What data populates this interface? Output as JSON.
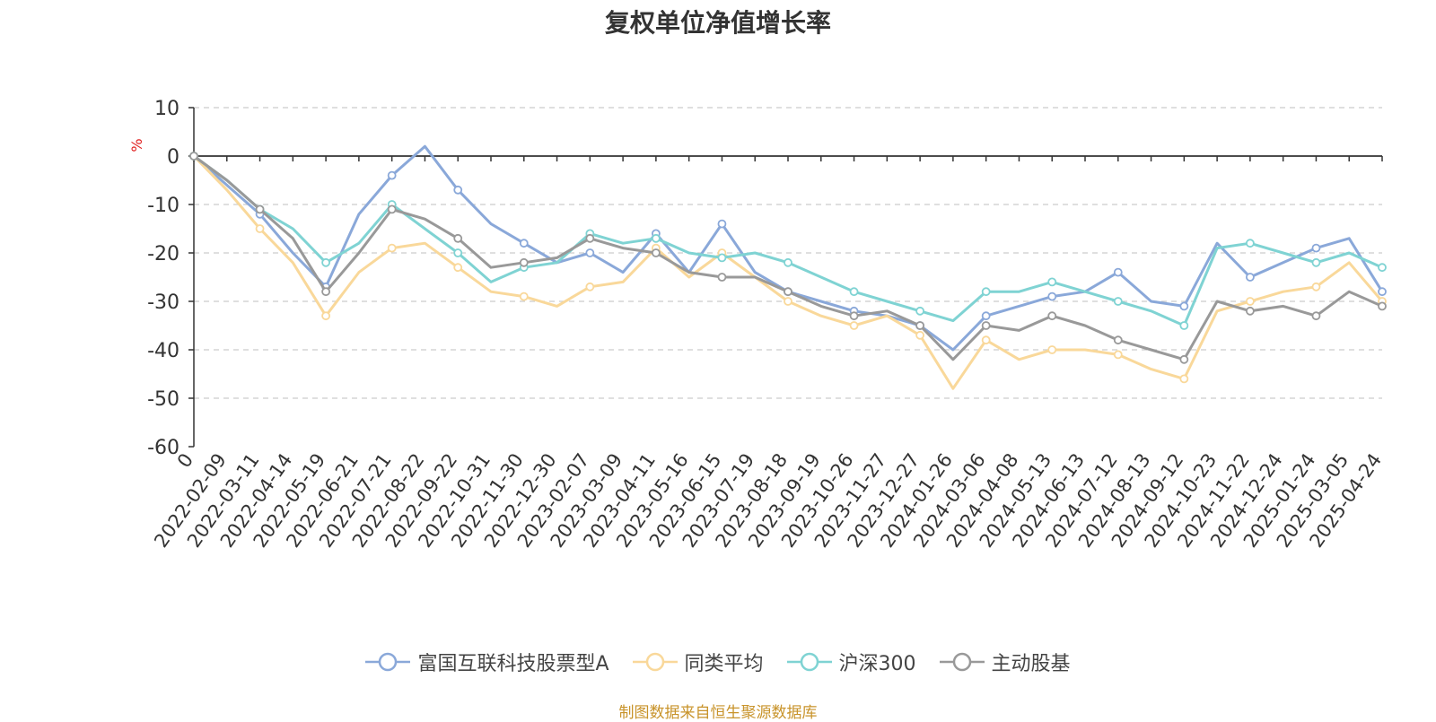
{
  "chart_data": {
    "type": "line",
    "title": "复权单位净值增长率",
    "ylabel": "%",
    "ylim": [
      -60,
      10
    ],
    "yticks": [
      10,
      0,
      -10,
      -20,
      -30,
      -40,
      -50,
      -60
    ],
    "grid": true,
    "legend_position": "bottom",
    "x_tick_labels": [
      "0",
      "2022-02-09",
      "2022-03-11",
      "2022-04-14",
      "2022-05-19",
      "2022-06-21",
      "2022-07-21",
      "2022-08-22",
      "2022-09-22",
      "2022-10-31",
      "2022-11-30",
      "2022-12-30",
      "2023-02-07",
      "2023-03-09",
      "2023-04-11",
      "2023-05-16",
      "2023-06-15",
      "2023-07-19",
      "2023-08-18",
      "2023-09-19",
      "2023-10-26",
      "2023-11-27",
      "2023-12-27",
      "2024-01-26",
      "2024-03-06",
      "2024-04-08",
      "2024-05-13",
      "2024-06-13",
      "2024-07-12",
      "2024-08-13",
      "2024-09-12",
      "2024-10-23",
      "2024-11-22",
      "2024-12-24",
      "2025-01-24",
      "2025-03-05",
      "2025-04-24"
    ],
    "series": [
      {
        "name": "富国互联科技股票型A",
        "color": "#8aa8d9",
        "values": [
          0,
          -6,
          -12,
          -20,
          -27,
          -12,
          -4,
          2,
          -7,
          -14,
          -18,
          -22,
          -20,
          -24,
          -16,
          -24,
          -14,
          -24,
          -28,
          -30,
          -32,
          -33,
          -35,
          -40,
          -33,
          -31,
          -29,
          -28,
          -24,
          -30,
          -31,
          -18,
          -25,
          -22,
          -19,
          -17,
          -28
        ]
      },
      {
        "name": "同类平均",
        "color": "#f9d89a",
        "values": [
          0,
          -7,
          -15,
          -22,
          -33,
          -24,
          -19,
          -18,
          -23,
          -28,
          -29,
          -31,
          -27,
          -26,
          -19,
          -25,
          -20,
          -25,
          -30,
          -33,
          -35,
          -33,
          -37,
          -48,
          -38,
          -42,
          -40,
          -40,
          -41,
          -44,
          -46,
          -32,
          -30,
          -28,
          -27,
          -22,
          -30
        ]
      },
      {
        "name": "沪深300",
        "color": "#7fd3d3",
        "values": [
          0,
          -5,
          -11,
          -15,
          -22,
          -18,
          -10,
          -15,
          -20,
          -26,
          -23,
          -22,
          -16,
          -18,
          -17,
          -20,
          -21,
          -20,
          -22,
          -25,
          -28,
          -30,
          -32,
          -34,
          -28,
          -28,
          -26,
          -28,
          -30,
          -32,
          -35,
          -19,
          -18,
          -20,
          -22,
          -20,
          -23
        ]
      },
      {
        "name": "主动股基",
        "color": "#999999",
        "values": [
          0,
          -5,
          -11,
          -17,
          -28,
          -20,
          -11,
          -13,
          -17,
          -23,
          -22,
          -21,
          -17,
          -19,
          -20,
          -24,
          -25,
          -25,
          -28,
          -31,
          -33,
          -32,
          -35,
          -42,
          -35,
          -36,
          -33,
          -35,
          -38,
          -40,
          -42,
          -30,
          -32,
          -31,
          -33,
          -28,
          -31
        ]
      }
    ]
  },
  "source_note": "制图数据来自恒生聚源数据库"
}
